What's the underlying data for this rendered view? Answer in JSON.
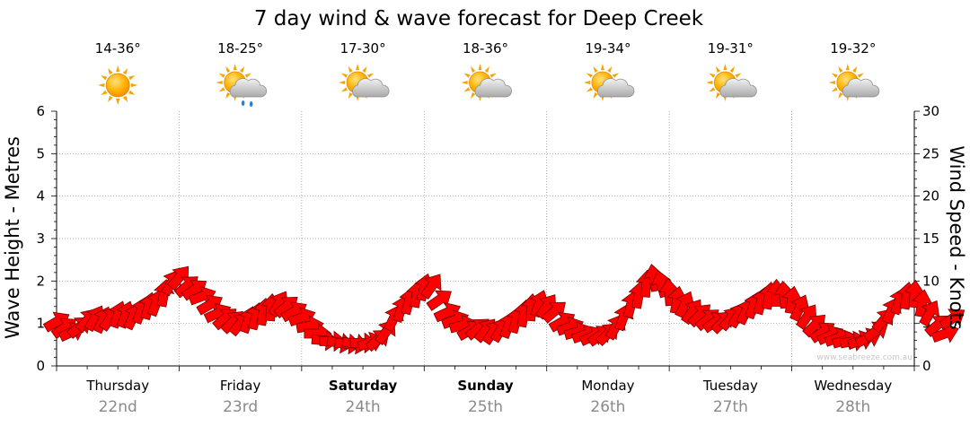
{
  "chart_data": {
    "type": "line",
    "title": "7 day wind & wave forecast for Deep Creek",
    "ylabel_left": "Wave Height - Metres",
    "ylabel_right": "Wind Speed - Knots",
    "ylim_left": [
      0,
      6
    ],
    "ylim_right": [
      0,
      30
    ],
    "yticks_left": [
      "0",
      "1",
      "2",
      "3",
      "4",
      "5",
      "6"
    ],
    "yticks_right": [
      "0",
      "5",
      "10",
      "15",
      "20",
      "25",
      "30"
    ],
    "grid": true,
    "credit": "www.seabreeze.com.au",
    "days": [
      {
        "name": "Thursday",
        "date": "22nd",
        "temp": "14-36°",
        "icon": "sun-icon",
        "bold": false
      },
      {
        "name": "Friday",
        "date": "23rd",
        "temp": "18-25°",
        "icon": "sun-cloud-rain-icon",
        "bold": false
      },
      {
        "name": "Saturday",
        "date": "24th",
        "temp": "17-30°",
        "icon": "sun-cloud-icon",
        "bold": true
      },
      {
        "name": "Sunday",
        "date": "25th",
        "temp": "18-36°",
        "icon": "sun-cloud-icon",
        "bold": true
      },
      {
        "name": "Monday",
        "date": "26th",
        "temp": "19-34°",
        "icon": "sun-cloud-icon",
        "bold": false
      },
      {
        "name": "Tuesday",
        "date": "27th",
        "temp": "19-31°",
        "icon": "sun-cloud-icon",
        "bold": false
      },
      {
        "name": "Wednesday",
        "date": "28th",
        "temp": "19-32°",
        "icon": "sun-cloud-icon",
        "bold": false
      }
    ],
    "wind_series": {
      "units": "knots",
      "day_start": 0,
      "step_days": 0.0625,
      "arrow_color": "#ff0000",
      "speeds": [
        5.2,
        4.5,
        4.0,
        4.6,
        5.4,
        5.6,
        5.4,
        5.6,
        6.0,
        6.0,
        5.8,
        6.5,
        7.0,
        7.4,
        8.5,
        9.8,
        10.4,
        9.4,
        9.0,
        8.2,
        7.2,
        6.2,
        5.6,
        5.2,
        5.0,
        5.4,
        5.8,
        6.3,
        6.8,
        7.3,
        7.0,
        6.4,
        5.7,
        4.7,
        3.8,
        3.0,
        2.9,
        2.7,
        2.6,
        2.6,
        2.7,
        2.8,
        3.1,
        4.0,
        5.6,
        6.7,
        7.6,
        8.4,
        9.2,
        9.4,
        7.8,
        6.3,
        5.4,
        4.8,
        4.2,
        4.4,
        4.2,
        4.0,
        4.3,
        4.8,
        5.4,
        6.1,
        6.8,
        7.3,
        7.0,
        6.4,
        5.2,
        4.6,
        4.0,
        3.7,
        3.5,
        3.6,
        3.8,
        4.6,
        5.7,
        7.2,
        8.3,
        9.6,
        10.3,
        9.6,
        8.6,
        7.7,
        7.2,
        6.4,
        6.0,
        5.5,
        5.2,
        5.2,
        5.6,
        6.0,
        6.4,
        7.1,
        7.6,
        8.2,
        8.5,
        8.3,
        7.7,
        6.8,
        5.8,
        4.8,
        4.0,
        3.6,
        3.3,
        3.0,
        2.9,
        3.0,
        3.3,
        4.1,
        5.4,
        6.5,
        7.6,
        8.2,
        8.4,
        7.3,
        6.2,
        4.8,
        3.8,
        5.6
      ],
      "directions_deg": [
        240,
        235,
        245,
        230,
        220,
        210,
        205,
        215,
        200,
        200,
        205,
        200,
        195,
        200,
        190,
        210,
        220,
        230,
        235,
        250,
        240,
        245,
        230,
        225,
        220,
        200,
        195,
        190,
        185,
        210,
        230,
        240,
        250,
        260,
        270,
        275,
        270,
        280,
        275,
        280,
        270,
        250,
        230,
        215,
        205,
        200,
        195,
        190,
        195,
        215,
        235,
        245,
        250,
        255,
        240,
        230,
        220,
        215,
        210,
        200,
        195,
        190,
        185,
        200,
        215,
        230,
        240,
        250,
        255,
        250,
        245,
        235,
        225,
        210,
        200,
        195,
        190,
        185,
        170,
        165,
        175,
        190,
        205,
        215,
        225,
        230,
        235,
        225,
        220,
        210,
        205,
        200,
        195,
        190,
        180,
        175,
        190,
        205,
        215,
        225,
        235,
        245,
        250,
        255,
        260,
        250,
        245,
        235,
        220,
        205,
        200,
        190,
        185,
        190,
        210,
        230,
        250,
        235
      ]
    }
  }
}
